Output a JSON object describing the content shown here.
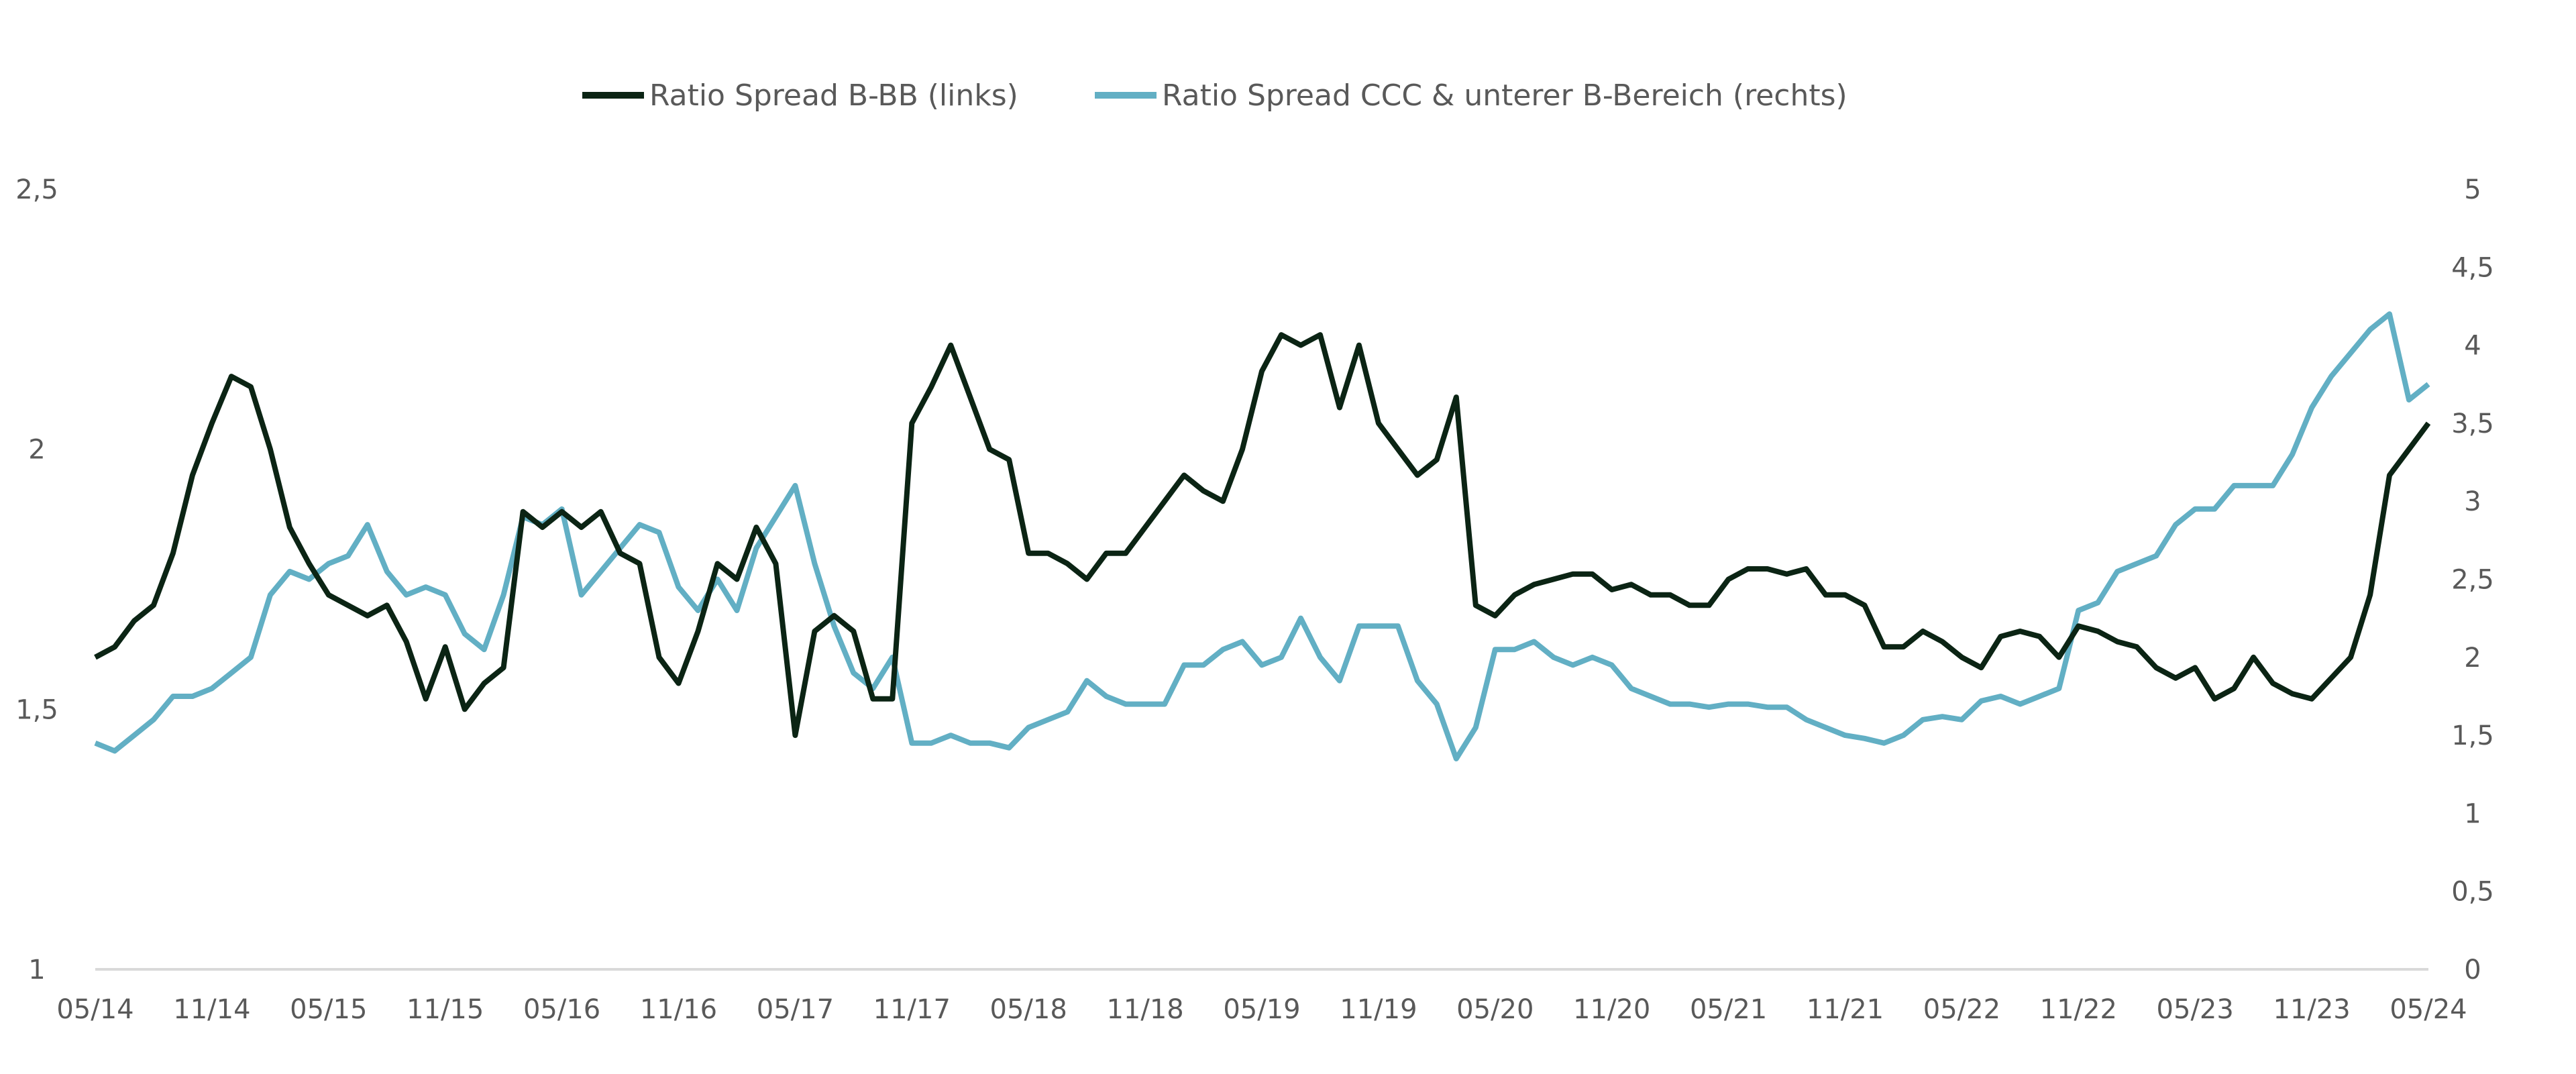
{
  "chart_data": {
    "type": "line",
    "title": "",
    "xlabel": "",
    "ylabel": "",
    "legend_position": "top-center",
    "grid": false,
    "x_tick_labels": [
      "05/14",
      "11/14",
      "05/15",
      "11/15",
      "05/16",
      "11/16",
      "05/17",
      "11/17",
      "05/18",
      "11/18",
      "05/19",
      "11/19",
      "05/20",
      "11/20",
      "05/21",
      "11/21",
      "05/22",
      "11/22",
      "05/23",
      "11/23",
      "05/24"
    ],
    "y_left": {
      "range": [
        1,
        2.5
      ],
      "tick_labels": [
        "1",
        "1,5",
        "2",
        "2,5"
      ],
      "ticks": [
        1,
        1.5,
        2,
        2.5
      ]
    },
    "y_right": {
      "range": [
        0,
        5
      ],
      "tick_labels": [
        "0",
        "0,5",
        "1",
        "1,5",
        "2",
        "2,5",
        "3",
        "3,5",
        "4",
        "4,5",
        "5"
      ],
      "ticks": [
        0,
        0.5,
        1,
        1.5,
        2,
        2.5,
        3,
        3.5,
        4,
        4.5,
        5
      ]
    },
    "x_note": "monthly values from 05/2014 (index 0) to 05/2024 (index 120)",
    "series": [
      {
        "name": "Ratio Spread B-BB (links)",
        "axis": "left",
        "color": "#0b2414",
        "values": [
          1.6,
          1.62,
          1.67,
          1.7,
          1.8,
          1.95,
          2.05,
          2.14,
          2.12,
          2.0,
          1.85,
          1.78,
          1.72,
          1.7,
          1.68,
          1.7,
          1.63,
          1.52,
          1.62,
          1.5,
          1.55,
          1.58,
          1.88,
          1.85,
          1.88,
          1.85,
          1.88,
          1.8,
          1.78,
          1.6,
          1.55,
          1.65,
          1.78,
          1.75,
          1.85,
          1.78,
          1.45,
          1.65,
          1.68,
          1.65,
          1.52,
          1.52,
          2.05,
          2.12,
          2.2,
          2.1,
          2.0,
          1.98,
          1.8,
          1.8,
          1.78,
          1.75,
          1.8,
          1.8,
          1.85,
          1.9,
          1.95,
          1.92,
          1.9,
          2.0,
          2.15,
          2.22,
          2.2,
          2.22,
          2.08,
          2.2,
          2.05,
          2.0,
          1.95,
          1.98,
          2.1,
          1.7,
          1.68,
          1.72,
          1.74,
          1.75,
          1.76,
          1.76,
          1.73,
          1.74,
          1.72,
          1.72,
          1.7,
          1.7,
          1.75,
          1.77,
          1.77,
          1.76,
          1.77,
          1.72,
          1.72,
          1.7,
          1.62,
          1.62,
          1.65,
          1.63,
          1.6,
          1.58,
          1.64,
          1.65,
          1.64,
          1.6,
          1.66,
          1.65,
          1.63,
          1.62,
          1.58,
          1.56,
          1.58,
          1.52,
          1.54,
          1.6,
          1.55,
          1.53,
          1.52,
          1.56,
          1.6,
          1.72,
          1.95,
          2.0,
          2.05
        ]
      },
      {
        "name": "Ratio Spread CCC & unterer B-Bereich (rechts)",
        "axis": "right",
        "color": "#62afc4",
        "values": [
          1.45,
          1.4,
          1.5,
          1.6,
          1.75,
          1.75,
          1.8,
          1.9,
          2.0,
          2.4,
          2.55,
          2.5,
          2.6,
          2.65,
          2.85,
          2.55,
          2.4,
          2.45,
          2.4,
          2.15,
          2.05,
          2.4,
          2.9,
          2.85,
          2.95,
          2.4,
          2.55,
          2.7,
          2.85,
          2.8,
          2.45,
          2.3,
          2.5,
          2.3,
          2.7,
          2.9,
          3.1,
          2.6,
          2.2,
          1.9,
          1.8,
          2.0,
          1.45,
          1.45,
          1.5,
          1.45,
          1.45,
          1.42,
          1.55,
          1.6,
          1.65,
          1.85,
          1.75,
          1.7,
          1.7,
          1.7,
          1.95,
          1.95,
          2.05,
          2.1,
          1.95,
          2.0,
          2.25,
          2.0,
          1.85,
          2.2,
          2.2,
          2.2,
          1.85,
          1.7,
          1.35,
          1.55,
          2.05,
          2.05,
          2.1,
          2.0,
          1.95,
          2.0,
          1.95,
          1.8,
          1.75,
          1.7,
          1.7,
          1.68,
          1.7,
          1.7,
          1.68,
          1.68,
          1.6,
          1.55,
          1.5,
          1.48,
          1.45,
          1.5,
          1.6,
          1.62,
          1.6,
          1.72,
          1.75,
          1.7,
          1.75,
          1.8,
          2.3,
          2.35,
          2.55,
          2.6,
          2.65,
          2.85,
          2.95,
          2.95,
          3.1,
          3.1,
          3.1,
          3.3,
          3.6,
          3.8,
          3.95,
          4.1,
          4.2,
          3.65,
          3.75
        ]
      }
    ]
  }
}
